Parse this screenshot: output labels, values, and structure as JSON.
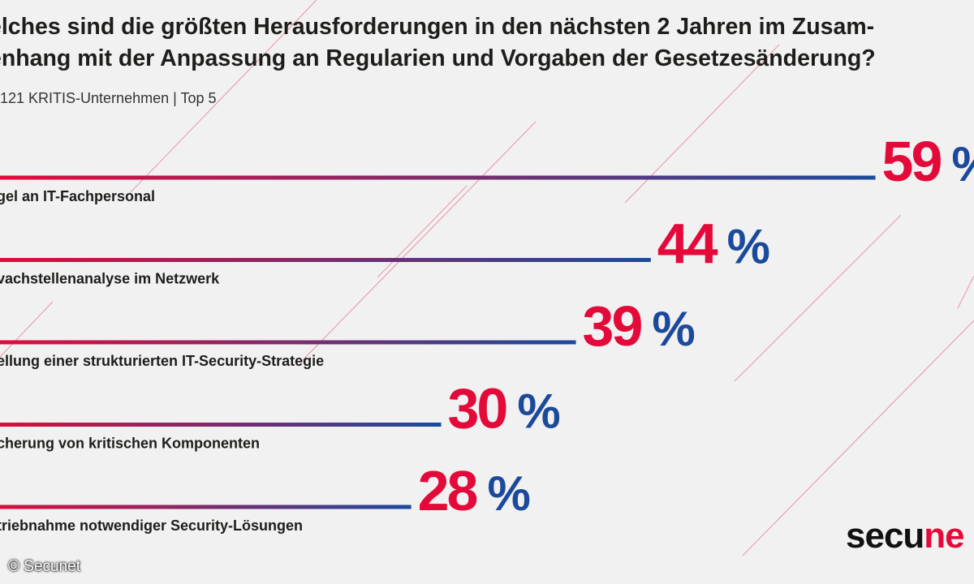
{
  "header": {
    "title_line1": "elches sind die größten Herausforderungen in den nächsten 2 Jahren im Zusam-",
    "title_line2": "enhang mit der Anpassung an Regularien und Vorgaben der Gesetzesänderung?",
    "subtitle": ": 121 KRITIS-Unternehmen | Top 5"
  },
  "chart_data": {
    "type": "bar",
    "orientation": "horizontal",
    "categories": [
      "gel an IT-Fachpersonal",
      "vachstellenanalyse im Netzwerk",
      "ellung einer strukturierten IT-Security-Strategie",
      "cherung von kritischen Komponenten",
      "triebnahme notwendiger Security-Lösungen"
    ],
    "values": [
      59,
      44,
      39,
      30,
      28
    ],
    "value_unit": "%",
    "xlim": [
      0,
      100
    ],
    "colors": {
      "start": "#e30a3a",
      "end": "#1b4a9c",
      "text": "#1d1d1b"
    }
  },
  "brand": {
    "logo_main": "secu",
    "logo_accent": "ne",
    "accent_color": "#e30a3a",
    "credit": "© Secunet"
  }
}
